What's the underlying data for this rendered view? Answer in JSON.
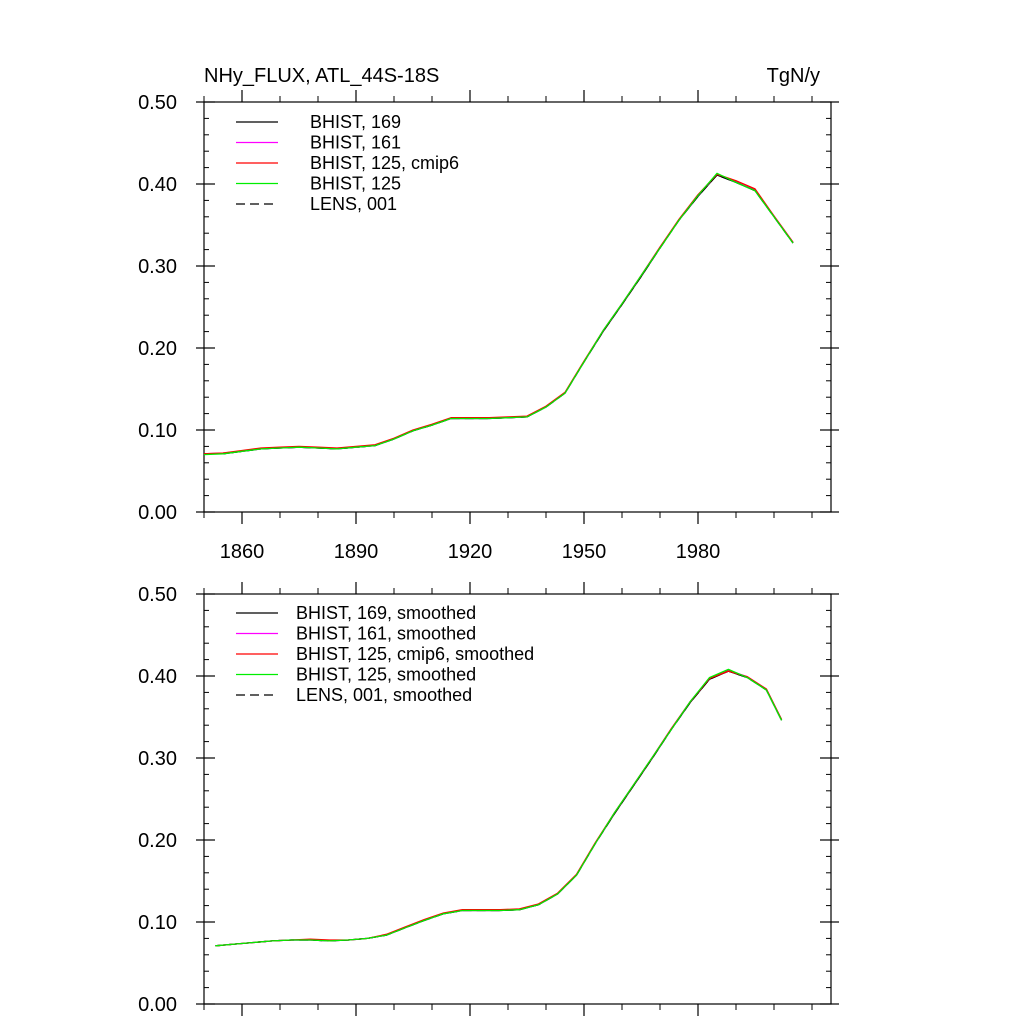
{
  "chart_data": [
    {
      "type": "line",
      "title": "NHy_FLUX, ATL_44S-18S",
      "units": "TgN/y",
      "xlabel": "",
      "ylabel": "",
      "xlim": [
        1850,
        2015
      ],
      "ylim": [
        0.0,
        0.5
      ],
      "x_ticks": [
        1860,
        1890,
        1920,
        1950,
        1980
      ],
      "x_tick_labels": [
        "1860",
        "1890",
        "1920",
        "1950",
        "1980"
      ],
      "y_ticks": [
        0.0,
        0.1,
        0.2,
        0.3,
        0.4,
        0.5
      ],
      "y_tick_labels": [
        "0.00",
        "0.10",
        "0.20",
        "0.30",
        "0.40",
        "0.50"
      ],
      "legend_position": "top-left",
      "x": [
        1850,
        1855,
        1860,
        1865,
        1870,
        1875,
        1880,
        1885,
        1890,
        1895,
        1900,
        1905,
        1910,
        1915,
        1920,
        1925,
        1930,
        1935,
        1940,
        1945,
        1950,
        1955,
        1960,
        1965,
        1970,
        1975,
        1980,
        1985,
        1990,
        1995,
        2000,
        2005
      ],
      "series": [
        {
          "name": "BHIST, 169",
          "color": "#000000",
          "dash": "solid",
          "values": [
            0.071,
            0.071,
            0.074,
            0.077,
            0.078,
            0.079,
            0.078,
            0.077,
            0.079,
            0.081,
            0.089,
            0.099,
            0.106,
            0.114,
            0.114,
            0.114,
            0.115,
            0.116,
            0.128,
            0.145,
            0.183,
            0.22,
            0.253,
            0.287,
            0.322,
            0.356,
            0.385,
            0.411,
            0.402,
            0.392,
            0.36,
            0.328
          ]
        },
        {
          "name": "BHIST, 161",
          "color": "#ff00ff",
          "dash": "solid",
          "values": [
            0.071,
            0.072,
            0.074,
            0.077,
            0.078,
            0.079,
            0.078,
            0.077,
            0.079,
            0.081,
            0.089,
            0.099,
            0.106,
            0.114,
            0.114,
            0.114,
            0.115,
            0.116,
            0.128,
            0.145,
            0.183,
            0.221,
            0.254,
            0.288,
            0.323,
            0.356,
            0.386,
            0.412,
            0.403,
            0.393,
            0.361,
            0.329
          ]
        },
        {
          "name": "BHIST, 125, cmip6",
          "color": "#ff0000",
          "dash": "solid",
          "values": [
            0.071,
            0.072,
            0.075,
            0.078,
            0.079,
            0.08,
            0.079,
            0.078,
            0.08,
            0.082,
            0.09,
            0.1,
            0.107,
            0.115,
            0.115,
            0.115,
            0.116,
            0.117,
            0.129,
            0.146,
            0.184,
            0.221,
            0.254,
            0.288,
            0.323,
            0.357,
            0.387,
            0.412,
            0.404,
            0.394,
            0.361,
            0.329
          ]
        },
        {
          "name": "BHIST, 125",
          "color": "#00ee00",
          "dash": "solid",
          "values": [
            0.07,
            0.071,
            0.074,
            0.077,
            0.078,
            0.079,
            0.078,
            0.077,
            0.079,
            0.081,
            0.089,
            0.099,
            0.106,
            0.114,
            0.114,
            0.114,
            0.115,
            0.116,
            0.128,
            0.145,
            0.183,
            0.221,
            0.254,
            0.288,
            0.322,
            0.356,
            0.386,
            0.413,
            0.402,
            0.392,
            0.36,
            0.328
          ]
        },
        {
          "name": "LENS, 001",
          "color": "#000000",
          "dash": "dashed",
          "values": [
            0.071,
            0.071,
            0.074,
            0.077,
            0.078,
            0.079,
            0.078,
            0.077,
            0.079,
            0.081,
            0.089,
            0.099,
            0.106,
            0.114,
            0.114,
            0.114,
            0.115,
            0.116,
            0.128,
            0.145,
            0.183,
            0.22,
            0.253,
            0.287,
            0.322,
            0.356,
            0.385,
            0.411,
            0.402,
            0.392,
            0.36,
            0.328
          ]
        }
      ]
    },
    {
      "type": "line",
      "title": "",
      "units": "",
      "xlabel": "",
      "ylabel": "",
      "xlim": [
        1850,
        2015
      ],
      "ylim": [
        0.0,
        0.5
      ],
      "x_ticks": [
        1860,
        1890,
        1920,
        1950,
        1980
      ],
      "x_tick_labels": [],
      "y_ticks": [
        0.0,
        0.1,
        0.2,
        0.3,
        0.4,
        0.5
      ],
      "y_tick_labels": [
        "0.00",
        "0.10",
        "0.20",
        "0.30",
        "0.40",
        "0.50"
      ],
      "legend_position": "top-left",
      "x": [
        1853,
        1858,
        1863,
        1868,
        1873,
        1878,
        1883,
        1888,
        1893,
        1898,
        1903,
        1908,
        1913,
        1918,
        1923,
        1928,
        1933,
        1938,
        1943,
        1948,
        1953,
        1958,
        1963,
        1968,
        1973,
        1978,
        1983,
        1988,
        1993,
        1998,
        2002
      ],
      "series": [
        {
          "name": "BHIST, 169, smoothed",
          "color": "#000000",
          "dash": "solid",
          "values": [
            0.071,
            0.073,
            0.075,
            0.077,
            0.078,
            0.078,
            0.077,
            0.078,
            0.08,
            0.084,
            0.093,
            0.102,
            0.11,
            0.114,
            0.114,
            0.114,
            0.115,
            0.121,
            0.134,
            0.157,
            0.196,
            0.232,
            0.266,
            0.3,
            0.335,
            0.368,
            0.396,
            0.406,
            0.398,
            0.383,
            0.346
          ]
        },
        {
          "name": "BHIST, 161, smoothed",
          "color": "#ff00ff",
          "dash": "solid",
          "values": [
            0.071,
            0.073,
            0.075,
            0.077,
            0.078,
            0.078,
            0.077,
            0.078,
            0.08,
            0.084,
            0.093,
            0.102,
            0.11,
            0.114,
            0.114,
            0.114,
            0.115,
            0.121,
            0.134,
            0.157,
            0.196,
            0.233,
            0.267,
            0.301,
            0.336,
            0.369,
            0.397,
            0.407,
            0.399,
            0.384,
            0.347
          ]
        },
        {
          "name": "BHIST, 125, cmip6, smoothed",
          "color": "#ff0000",
          "dash": "solid",
          "values": [
            0.071,
            0.073,
            0.075,
            0.077,
            0.078,
            0.079,
            0.078,
            0.078,
            0.08,
            0.085,
            0.094,
            0.103,
            0.111,
            0.115,
            0.115,
            0.115,
            0.116,
            0.122,
            0.135,
            0.158,
            0.197,
            0.233,
            0.267,
            0.301,
            0.336,
            0.369,
            0.397,
            0.406,
            0.399,
            0.384,
            0.347
          ]
        },
        {
          "name": "BHIST, 125, smoothed",
          "color": "#00ee00",
          "dash": "solid",
          "values": [
            0.071,
            0.073,
            0.075,
            0.077,
            0.078,
            0.078,
            0.077,
            0.078,
            0.08,
            0.084,
            0.093,
            0.102,
            0.11,
            0.114,
            0.114,
            0.114,
            0.115,
            0.121,
            0.134,
            0.157,
            0.196,
            0.233,
            0.267,
            0.301,
            0.335,
            0.369,
            0.398,
            0.408,
            0.398,
            0.383,
            0.346
          ]
        },
        {
          "name": "LENS, 001, smoothed",
          "color": "#000000",
          "dash": "dashed",
          "values": [
            0.071,
            0.073,
            0.075,
            0.077,
            0.078,
            0.078,
            0.077,
            0.078,
            0.08,
            0.084,
            0.093,
            0.102,
            0.11,
            0.114,
            0.114,
            0.114,
            0.115,
            0.121,
            0.134,
            0.157,
            0.196,
            0.232,
            0.266,
            0.3,
            0.335,
            0.368,
            0.396,
            0.406,
            0.398,
            0.383,
            0.346
          ]
        }
      ]
    }
  ]
}
